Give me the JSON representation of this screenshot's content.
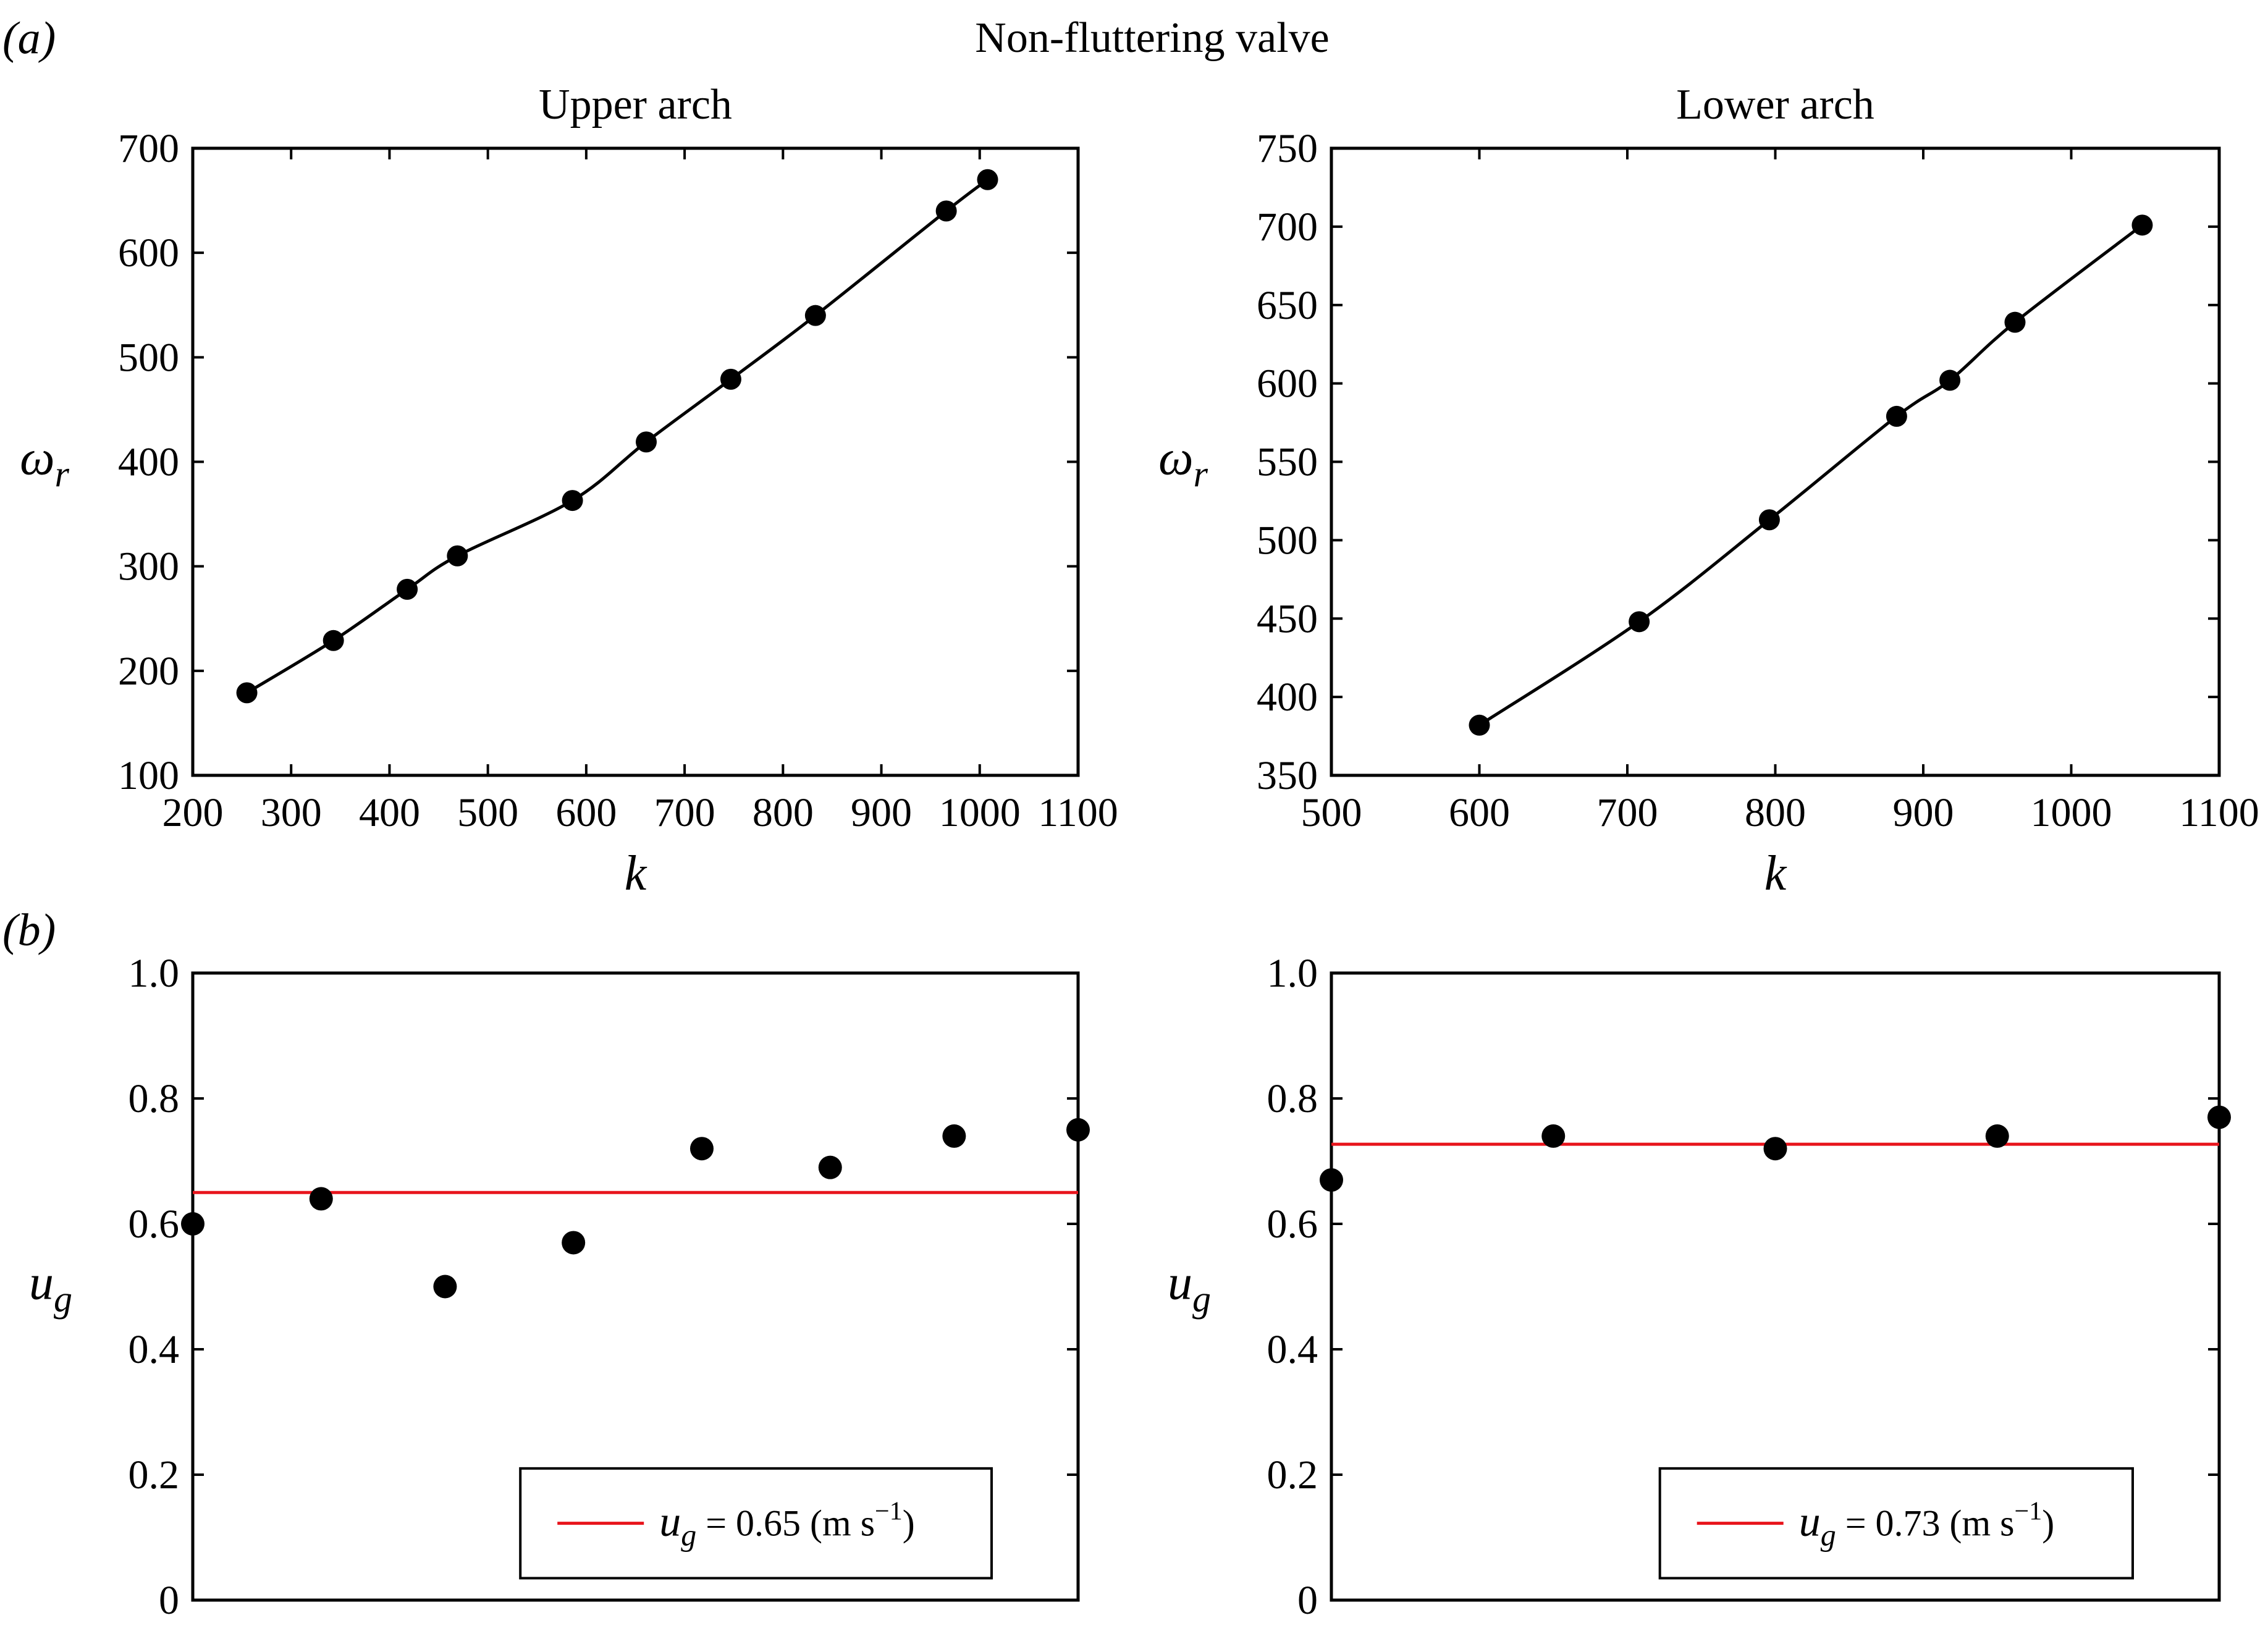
{
  "figure": {
    "suptitle": "Non-fluttering valve",
    "panel_a_label": "(a)",
    "panel_b_label": "(b)"
  },
  "colors": {
    "line": "#000000",
    "marker": "#000000",
    "mean_line": "#e8141c",
    "axes": "#000000"
  },
  "chart_data": [
    {
      "id": "a-upper",
      "type": "line",
      "title": "Upper arch",
      "xlabel": "k",
      "ylabel": "ωr",
      "xlim": [
        200,
        1100
      ],
      "ylim": [
        100,
        700
      ],
      "xticks": [
        200,
        300,
        400,
        500,
        600,
        700,
        800,
        900,
        1000,
        1100
      ],
      "yticks": [
        100,
        200,
        300,
        400,
        500,
        600,
        700
      ],
      "series": [
        {
          "x": [
            255,
            343,
            418,
            469,
            586,
            661,
            747,
            833,
            966,
            1008
          ],
          "y": [
            179,
            229,
            278,
            310,
            363,
            419,
            479,
            540,
            640,
            670
          ]
        }
      ]
    },
    {
      "id": "a-lower",
      "type": "line",
      "title": "Lower arch",
      "xlabel": "k",
      "ylabel": "ωr",
      "xlim": [
        500,
        1100
      ],
      "ylim": [
        350,
        750
      ],
      "xticks": [
        500,
        600,
        700,
        800,
        900,
        1000,
        1100
      ],
      "yticks": [
        350,
        400,
        450,
        500,
        550,
        600,
        650,
        700,
        750
      ],
      "series": [
        {
          "x": [
            600,
            708,
            796,
            882,
            918,
            962,
            1048
          ],
          "y": [
            382,
            448,
            513,
            579,
            602,
            639,
            701
          ]
        }
      ]
    },
    {
      "id": "b-upper",
      "type": "scatter",
      "ylabel": "ug",
      "ylim": [
        0,
        1.0
      ],
      "yticks": [
        0,
        0.2,
        0.4,
        0.6,
        0.8,
        1.0
      ],
      "ytick_labels": [
        "0",
        "0.2",
        "0.4",
        "0.6",
        "0.8",
        "1.0"
      ],
      "xlim": [
        0,
        10
      ],
      "points": {
        "x": [
          0,
          1.45,
          2.85,
          4.3,
          5.75,
          7.2,
          8.6,
          10
        ],
        "y": [
          0.6,
          0.64,
          0.5,
          0.57,
          0.72,
          0.69,
          0.74,
          0.75
        ]
      },
      "mean": 0.65,
      "legend": {
        "var": "u",
        "sub": "g",
        "text": " = 0.65 (m s",
        "sup": "−1",
        "close": ")",
        "position": "lower-right"
      }
    },
    {
      "id": "b-lower",
      "type": "scatter",
      "ylabel": "ug",
      "ylim": [
        0,
        1.0
      ],
      "yticks": [
        0,
        0.2,
        0.4,
        0.6,
        0.8,
        1.0
      ],
      "ytick_labels": [
        "0",
        "0.2",
        "0.4",
        "0.6",
        "0.8",
        "1.0"
      ],
      "xlim": [
        0,
        4
      ],
      "points": {
        "x": [
          0,
          1,
          2,
          3,
          4
        ],
        "y": [
          0.67,
          0.74,
          0.72,
          0.74,
          0.77
        ]
      },
      "mean": 0.727,
      "legend": {
        "var": "u",
        "sub": "g",
        "text": " = 0.73 (m s",
        "sup": "−1",
        "close": ")",
        "position": "lower-right"
      }
    }
  ]
}
